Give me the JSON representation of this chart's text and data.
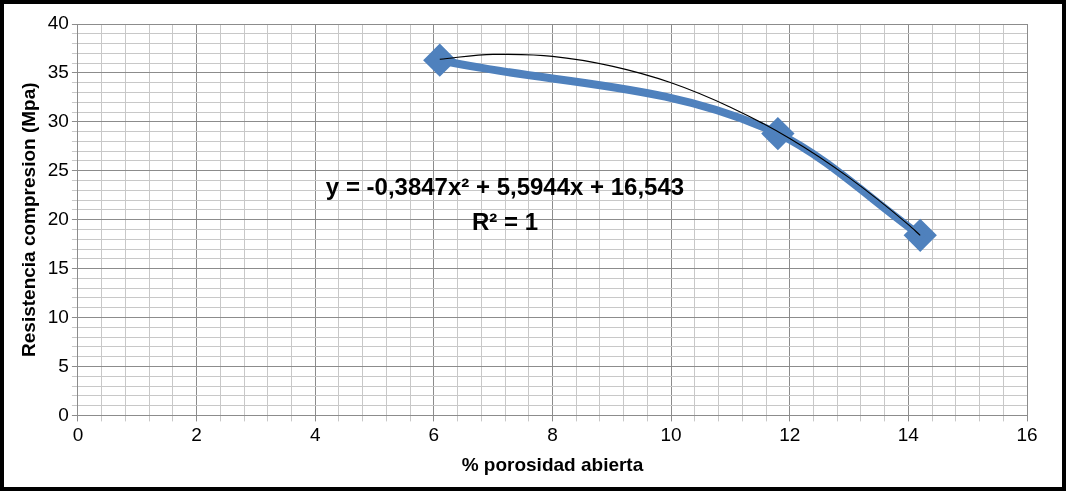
{
  "chart_data": {
    "type": "line",
    "xlabel": "% porosidad abierta",
    "ylabel": "Resistencia compresion (Mpa)",
    "xlim": [
      0,
      16
    ],
    "ylim": [
      0,
      40
    ],
    "xticks": [
      0,
      {
        "value": 0.4,
        "label": null
      },
      {
        "value": 0.8,
        "label": null
      },
      {
        "value": 1.2,
        "label": null
      },
      {
        "value": 1.6,
        "label": null
      },
      2,
      {
        "value": 2.4,
        "label": null
      },
      {
        "value": 2.8,
        "label": null
      },
      {
        "value": 3.2,
        "label": null
      },
      {
        "value": 3.6,
        "label": null
      },
      4,
      {
        "value": 4.4,
        "label": null
      },
      {
        "value": 4.8,
        "label": null
      },
      {
        "value": 5.2,
        "label": null
      },
      {
        "value": 5.6,
        "label": null
      },
      6,
      {
        "value": 6.4,
        "label": null
      },
      {
        "value": 6.8,
        "label": null
      },
      {
        "value": 7.2,
        "label": null
      },
      {
        "value": 7.6,
        "label": null
      },
      8,
      {
        "value": 8.4,
        "label": null
      },
      {
        "value": 8.8,
        "label": null
      },
      {
        "value": 9.2,
        "label": null
      },
      {
        "value": 9.6,
        "label": null
      },
      10,
      {
        "value": 10.4,
        "label": null
      },
      {
        "value": 10.8,
        "label": null
      },
      {
        "value": 11.2,
        "label": null
      },
      {
        "value": 11.6,
        "label": null
      },
      12,
      {
        "value": 12.4,
        "label": null
      },
      {
        "value": 12.8,
        "label": null
      },
      {
        "value": 13.2,
        "label": null
      },
      {
        "value": 13.6,
        "label": null
      },
      14,
      {
        "value": 14.4,
        "label": null
      },
      {
        "value": 14.8,
        "label": null
      },
      {
        "value": 15.2,
        "label": null
      },
      {
        "value": 15.6,
        "label": null
      },
      16
    ],
    "yticks": [
      0,
      {
        "value": 1,
        "label": null
      },
      {
        "value": 2,
        "label": null
      },
      {
        "value": 3,
        "label": null
      },
      {
        "value": 4,
        "label": null
      },
      5,
      {
        "value": 6,
        "label": null
      },
      {
        "value": 7,
        "label": null
      },
      {
        "value": 8,
        "label": null
      },
      {
        "value": 9,
        "label": null
      },
      10,
      {
        "value": 11,
        "label": null
      },
      {
        "value": 12,
        "label": null
      },
      {
        "value": 13,
        "label": null
      },
      {
        "value": 14,
        "label": null
      },
      15,
      {
        "value": 16,
        "label": null
      },
      {
        "value": 17,
        "label": null
      },
      {
        "value": 18,
        "label": null
      },
      {
        "value": 19,
        "label": null
      },
      20,
      {
        "value": 21,
        "label": null
      },
      {
        "value": 22,
        "label": null
      },
      {
        "value": 23,
        "label": null
      },
      {
        "value": 24,
        "label": null
      },
      25,
      {
        "value": 26,
        "label": null
      },
      {
        "value": 27,
        "label": null
      },
      {
        "value": 28,
        "label": null
      },
      {
        "value": 29,
        "label": null
      },
      30,
      {
        "value": 31,
        "label": null
      },
      {
        "value": 32,
        "label": null
      },
      {
        "value": 33,
        "label": null
      },
      {
        "value": 34,
        "label": null
      },
      35,
      {
        "value": 36,
        "label": null
      },
      {
        "value": 37,
        "label": null
      },
      {
        "value": 38,
        "label": null
      },
      {
        "value": 39,
        "label": null
      },
      40
    ],
    "grid": true,
    "legend": false,
    "series": [
      {
        "color": "#4f81bd",
        "marker": "diamond",
        "x": [
          6.1,
          11.8,
          14.2
        ],
        "values": [
          36.3,
          28.8,
          18.4
        ]
      },
      {
        "color": "#000000",
        "marker": "none",
        "x": [
          6.1,
          7,
          8,
          9,
          10,
          11,
          12,
          13,
          14,
          14.2
        ],
        "values": [
          36.4,
          36.9,
          36.7,
          35.7,
          34.0,
          31.5,
          28.3,
          24.3,
          19.5,
          18.4
        ]
      }
    ],
    "annotations": [
      "y = -0,3847x² + 5,5944x + 16,543",
      "R² = 1"
    ]
  }
}
